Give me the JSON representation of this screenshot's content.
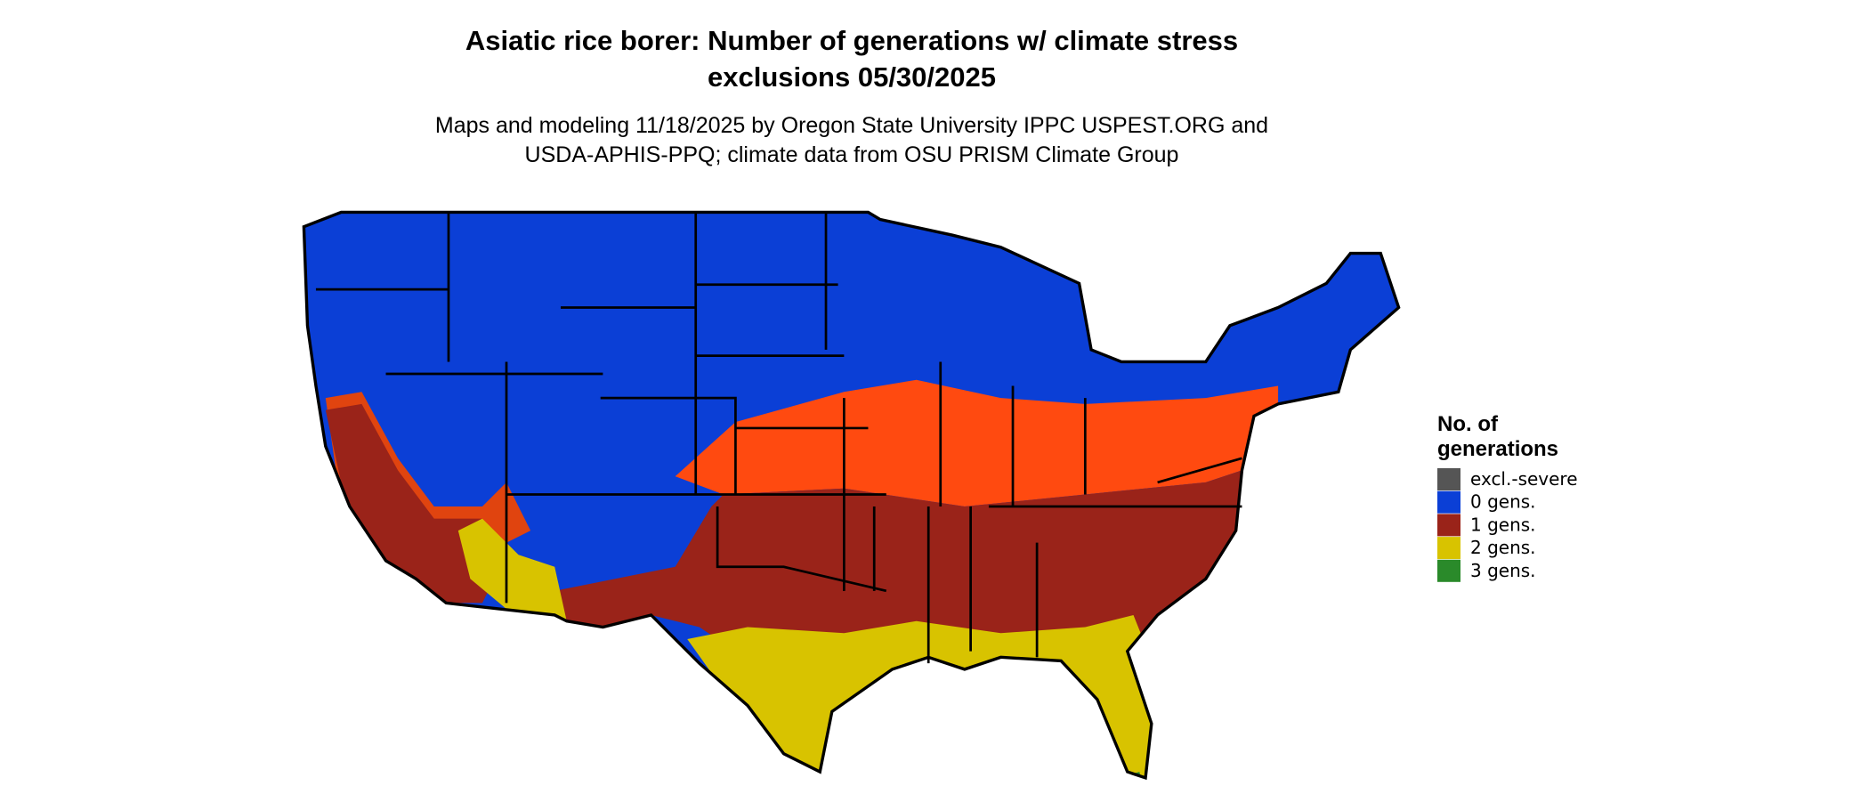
{
  "header": {
    "title": [
      "Asiatic rice borer: Number of generations w/ climate stress",
      "exclusions 05/30/2025"
    ],
    "subtitle": [
      "Maps and modeling 11/18/2025 by Oregon State University IPPC USPEST.ORG and",
      "USDA-APHIS-PPQ; climate data from OSU PRISM Climate Group"
    ]
  },
  "legend": {
    "title": [
      "No. of",
      "generations"
    ],
    "items": [
      {
        "label": "excl.-severe",
        "color": "#555555"
      },
      {
        "label": "0 gens.",
        "color": "#0b3fd6"
      },
      {
        "label": "1 gens.",
        "color": "#9a2319"
      },
      {
        "label": "2 gens.",
        "color": "#d8c300"
      },
      {
        "label": "3 gens.",
        "color": "#2a8a2a"
      }
    ]
  }
}
